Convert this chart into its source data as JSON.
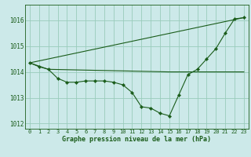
{
  "xlabel": "Graphe pression niveau de la mer (hPa)",
  "bg_color": "#cce9e9",
  "grid_color": "#99ccbb",
  "line_color": "#1a5c1a",
  "line1_x": [
    0,
    1,
    2,
    3,
    4,
    5,
    6,
    7,
    8,
    9,
    10,
    11,
    12,
    13,
    14,
    15,
    16,
    17,
    18,
    19,
    20,
    21,
    22,
    23
  ],
  "line1_y": [
    1014.35,
    1014.2,
    1014.1,
    1013.75,
    1013.6,
    1013.6,
    1013.65,
    1013.65,
    1013.65,
    1013.6,
    1013.5,
    1013.2,
    1012.65,
    1012.6,
    1012.4,
    1012.3,
    1013.1,
    1013.9,
    1014.1,
    1014.5,
    1014.9,
    1015.5,
    1016.05,
    1016.1
  ],
  "line2_x": [
    0,
    23
  ],
  "line2_y": [
    1014.35,
    1016.1
  ],
  "line3_x": [
    0,
    2,
    15,
    23
  ],
  "line3_y": [
    1014.35,
    1014.1,
    1014.0,
    1014.0
  ],
  "ylim": [
    1011.8,
    1016.6
  ],
  "yticks": [
    1012,
    1013,
    1014,
    1015,
    1016
  ],
  "xticks": [
    0,
    1,
    2,
    3,
    4,
    5,
    6,
    7,
    8,
    9,
    10,
    11,
    12,
    13,
    14,
    15,
    16,
    17,
    18,
    19,
    20,
    21,
    22,
    23
  ],
  "tick_fontsize": 5,
  "xlabel_fontsize": 6
}
